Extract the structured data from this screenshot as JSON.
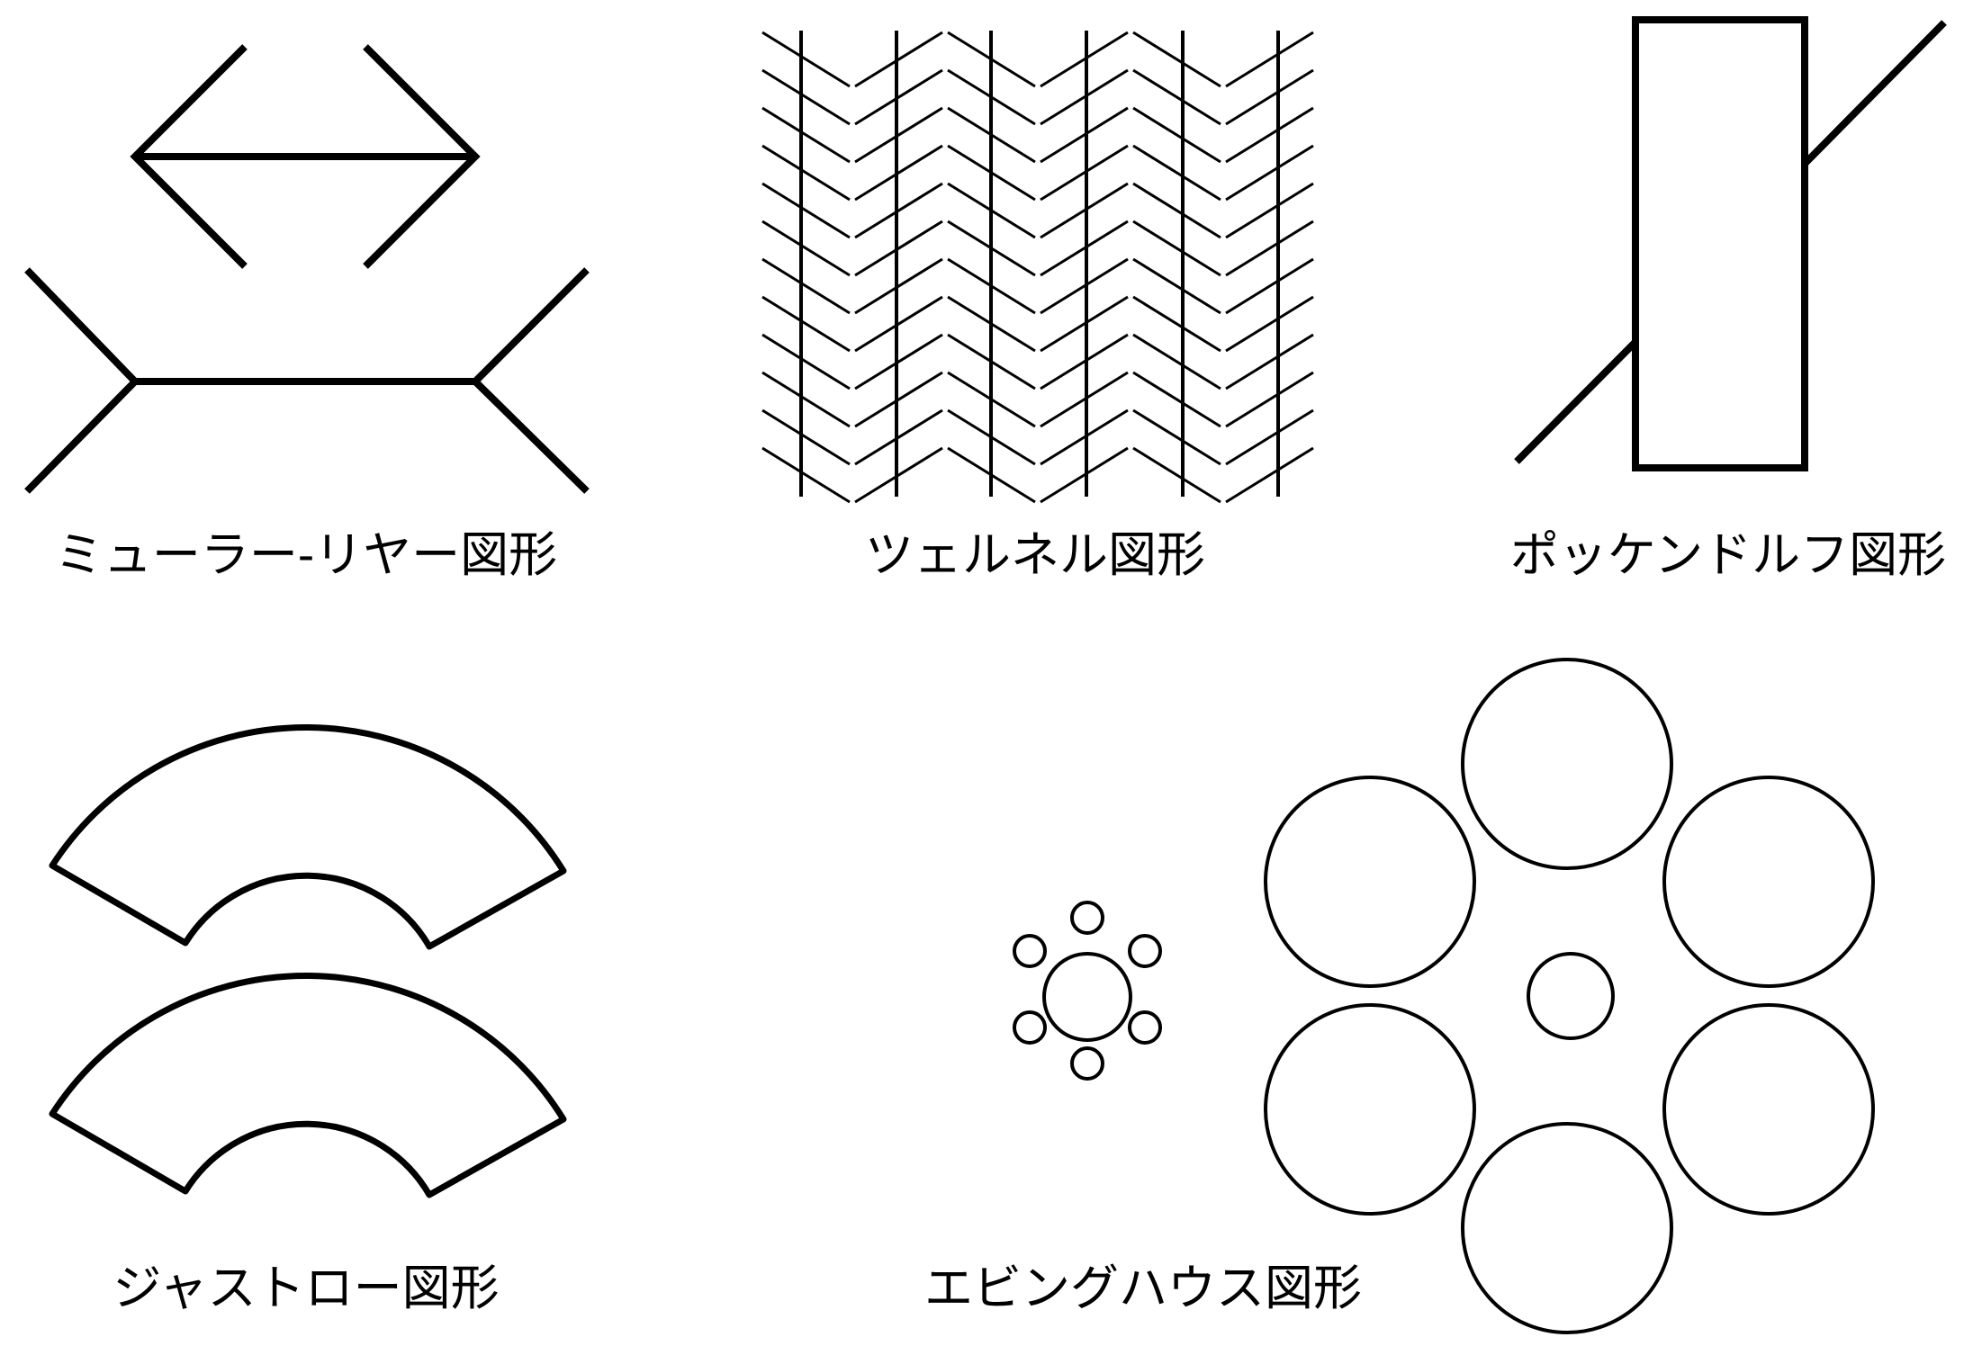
{
  "captions": {
    "muller_lyer": "ミューラー-リヤー図形",
    "zollner": "ツェルネル図形",
    "poggendorff": "ポッケンドルフ図形",
    "jastrow": "ジャストロー図形",
    "ebbinghaus": "エビングハウス図形"
  },
  "colors": {
    "stroke": "#000000",
    "background": "#ffffff"
  }
}
